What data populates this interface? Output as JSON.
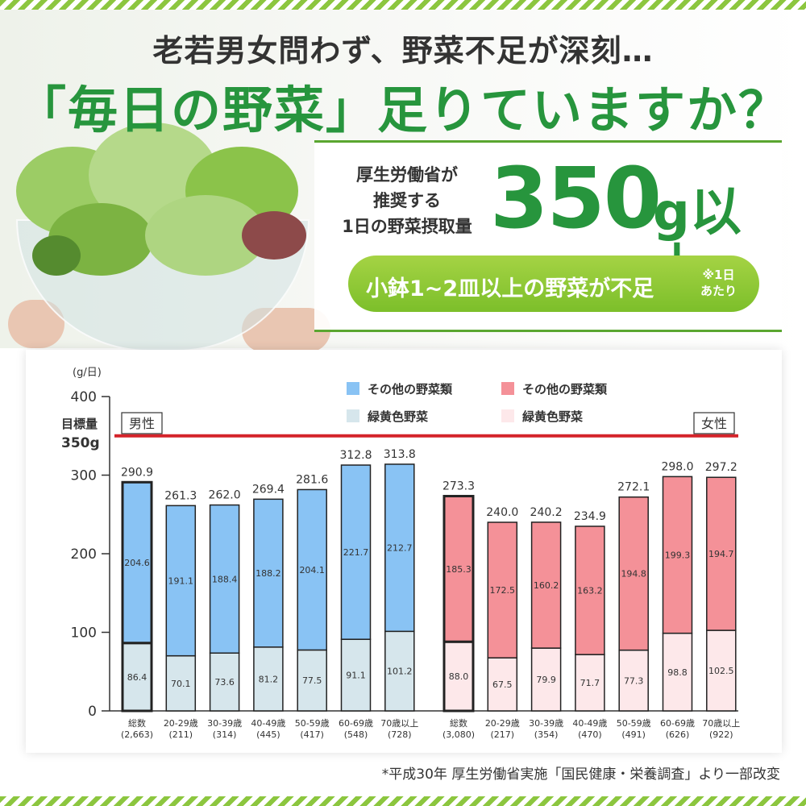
{
  "headline": {
    "line1": "老若男女問わず、野菜不足が深刻…",
    "line2": "「毎日の野菜」足りていますか？"
  },
  "recommendation": {
    "description": "厚生労働省が\n推奨する\n1日の野菜摂取量",
    "amount": "350",
    "unit": "g以上",
    "shortage": "小鉢1~2皿以上の野菜が不足",
    "shortage_note": "※1日\nあたり"
  },
  "source": "*平成30年 厚生労働省実施「国民健康・栄養調査」より一部改変",
  "colors": {
    "brand_green": "#27953d",
    "male_other": "#89c3f4",
    "male_green_yellow": "#d6e6ec",
    "female_other": "#f49198",
    "female_green_yellow": "#fde8ea",
    "target_line": "#d4232a"
  },
  "chart_data": {
    "type": "bar",
    "stacked": true,
    "ylabel": "(g/日)",
    "ylim": [
      0,
      400
    ],
    "yticks": [
      0,
      100,
      200,
      300,
      400
    ],
    "target": {
      "label": "目標量",
      "value_label": "350g",
      "value": 350
    },
    "legend": [
      {
        "text": "その他の野菜類",
        "group": "男性"
      },
      {
        "text": "緑黄色野菜",
        "group": "男性"
      },
      {
        "text": "その他の野菜類",
        "group": "女性"
      },
      {
        "text": "緑黄色野菜",
        "group": "女性"
      }
    ],
    "groups": [
      {
        "name": "男性",
        "categories": [
          "総数",
          "20-29歳",
          "30-39歳",
          "40-49歳",
          "50-59歳",
          "60-69歳",
          "70歳以上"
        ],
        "counts": [
          "(2,663)",
          "(211)",
          "(314)",
          "(445)",
          "(417)",
          "(548)",
          "(728)"
        ],
        "green_yellow": [
          86.4,
          70.1,
          73.6,
          81.2,
          77.5,
          91.1,
          101.2
        ],
        "other": [
          204.6,
          191.1,
          188.4,
          188.2,
          204.1,
          221.7,
          212.7
        ],
        "totals": [
          290.9,
          261.3,
          262.0,
          269.4,
          281.6,
          312.8,
          313.8
        ]
      },
      {
        "name": "女性",
        "categories": [
          "総数",
          "20-29歳",
          "30-39歳",
          "40-49歳",
          "50-59歳",
          "60-69歳",
          "70歳以上"
        ],
        "counts": [
          "(3,080)",
          "(217)",
          "(354)",
          "(470)",
          "(491)",
          "(626)",
          "(922)"
        ],
        "green_yellow": [
          88.0,
          67.5,
          79.9,
          71.7,
          77.3,
          98.8,
          102.5
        ],
        "other": [
          185.3,
          172.5,
          160.2,
          163.2,
          194.8,
          199.3,
          194.7
        ],
        "totals": [
          273.3,
          240.0,
          240.2,
          234.9,
          272.1,
          298.0,
          297.2
        ]
      }
    ]
  }
}
